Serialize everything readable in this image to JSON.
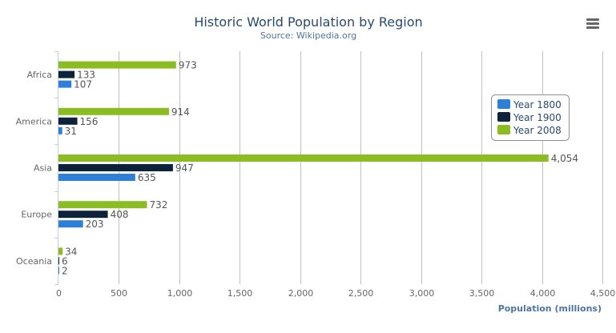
{
  "menu_icon": "hamburger-menu-icon",
  "chart_data": {
    "type": "bar",
    "orientation": "horizontal",
    "title": "Historic World Population by Region",
    "subtitle": "Source: Wikipedia.org",
    "xlabel": "",
    "ylabel": "Population (millions)",
    "categories": [
      "Africa",
      "America",
      "Asia",
      "Europe",
      "Oceania"
    ],
    "series": [
      {
        "name": "Year 1800",
        "color": "#2f7ed8",
        "values": [
          107,
          31,
          635,
          203,
          2
        ]
      },
      {
        "name": "Year 1900",
        "color": "#0d233a",
        "values": [
          133,
          156,
          947,
          408,
          6
        ]
      },
      {
        "name": "Year 2008",
        "color": "#8bbc21",
        "values": [
          973,
          914,
          4054,
          732,
          34
        ]
      }
    ],
    "value_axis_range": [
      0,
      4500
    ],
    "value_ticks": [
      0,
      500,
      1000,
      1500,
      2000,
      2500,
      3000,
      3500,
      4000,
      4500
    ],
    "value_tick_labels": [
      "0",
      "500",
      "1,000",
      "1,500",
      "2,000",
      "2,500",
      "3,000",
      "3,500",
      "4,000",
      "4,500"
    ],
    "data_labels": true,
    "grid": true,
    "legend_placement": "right",
    "colors": {
      "title": "#274b6d",
      "subtitle": "#4d759e",
      "axis_title": "#4d759e",
      "grid": "#c0c0c0"
    }
  }
}
